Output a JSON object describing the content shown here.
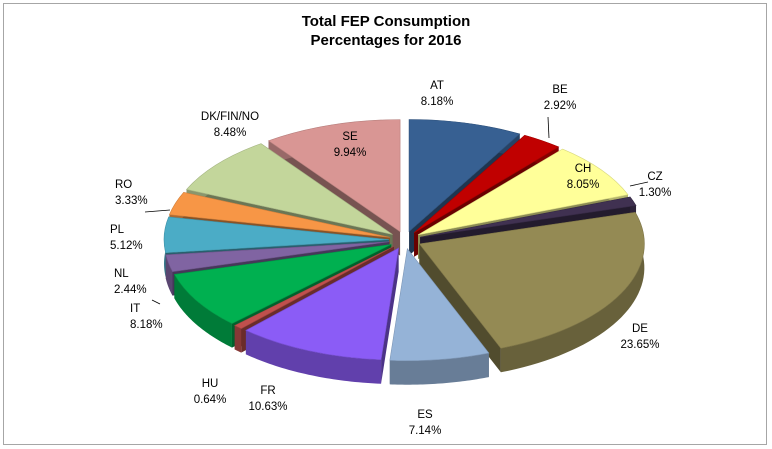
{
  "chart_data": {
    "type": "pie",
    "title_line1": "Total FEP Consumption",
    "title_line2": "Percentages for 2016",
    "legend": "none",
    "slices": [
      {
        "label": "AT",
        "value_text": "8.18%",
        "value": 8.18,
        "color": "#376092"
      },
      {
        "label": "BE",
        "value_text": "2.92%",
        "value": 2.92,
        "color": "#c00000"
      },
      {
        "label": "CH",
        "value_text": "8.05%",
        "value": 8.05,
        "color": "#ffff99"
      },
      {
        "label": "CZ",
        "value_text": "1.30%",
        "value": 1.3,
        "color": "#403151"
      },
      {
        "label": "DE",
        "value_text": "23.65%",
        "value": 23.65,
        "color": "#948a54"
      },
      {
        "label": "ES",
        "value_text": "7.14%",
        "value": 7.14,
        "color": "#95b3d7"
      },
      {
        "label": "FR",
        "value_text": "10.63%",
        "value": 10.63,
        "color": "#8b5cf6"
      },
      {
        "label": "HU",
        "value_text": "0.64%",
        "value": 0.64,
        "color": "#c0504d"
      },
      {
        "label": "IT",
        "value_text": "8.18%",
        "value": 8.18,
        "color": "#00b050"
      },
      {
        "label": "NL",
        "value_text": "2.44%",
        "value": 2.44,
        "color": "#8064a2"
      },
      {
        "label": "PL",
        "value_text": "5.12%",
        "value": 5.12,
        "color": "#4bacc6"
      },
      {
        "label": "RO",
        "value_text": "3.33%",
        "value": 3.33,
        "color": "#f79646"
      },
      {
        "label": "DK/FIN/NO",
        "value_text": "8.48%",
        "value": 8.48,
        "color": "#c3d69b"
      },
      {
        "label": "SE",
        "value_text": "9.94%",
        "value": 9.94,
        "color": "#d99694"
      }
    ]
  }
}
